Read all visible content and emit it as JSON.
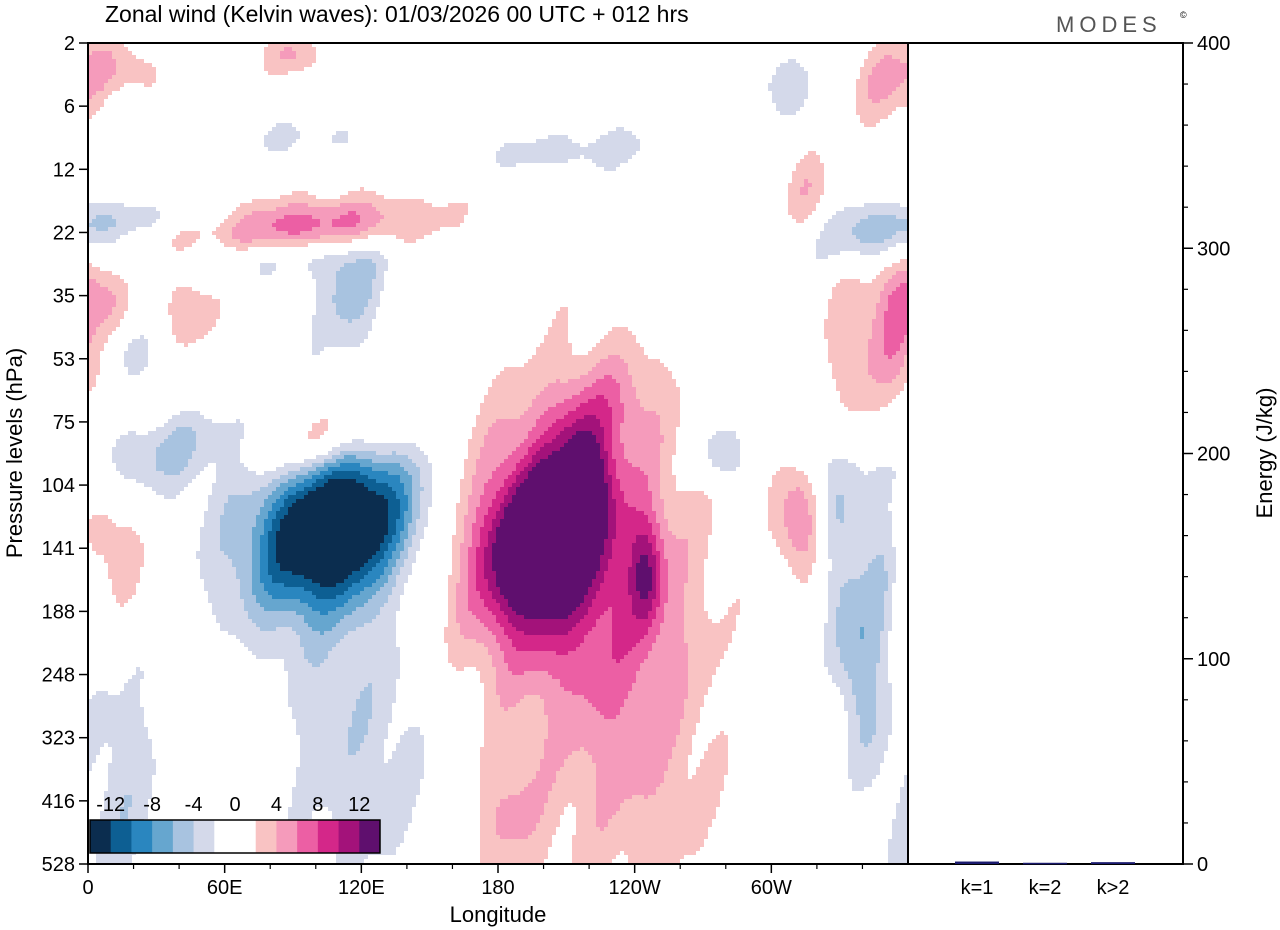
{
  "chart_data": [
    {
      "type": "heatmap",
      "title": "Zonal wind (Kelvin waves):  01/03/2026  00 UTC  + 012 hrs",
      "xlabel": "Longitude",
      "ylabel": "Pressure levels (hPa)",
      "x_ticks": [
        "0",
        "60E",
        "120E",
        "180",
        "120W",
        "60W"
      ],
      "x_tick_degrees": [
        0,
        60,
        120,
        180,
        240,
        300
      ],
      "xlim": [
        0,
        360
      ],
      "y_ticks": [
        "2",
        "6",
        "12",
        "22",
        "35",
        "53",
        "75",
        "104",
        "141",
        "188",
        "248",
        "323",
        "416",
        "528"
      ],
      "colorbar": {
        "labels": [
          "-12",
          "-8",
          "-4",
          "0",
          "4",
          "8",
          "12"
        ],
        "colors": [
          "#0b2d4f",
          "#0d5f93",
          "#2a86bf",
          "#66a6cf",
          "#a8c3e0",
          "#d4d9ea",
          "#ffffff",
          "#ffffff",
          "#f9c3c3",
          "#f59bbb",
          "#ec5fa4",
          "#d42789",
          "#a3127a",
          "#5f0f6e"
        ]
      },
      "anomalies": [
        {
          "lon": 110,
          "level": 7.7,
          "amp": -15,
          "slon": 22,
          "slev": 0.85,
          "tilt": -9
        },
        {
          "lon": 92,
          "level": 7.25,
          "amp": -4,
          "slon": 30,
          "slev": 1.3,
          "tilt": -7
        },
        {
          "lon": 58,
          "level": 6.4,
          "amp": -7,
          "slon": 34,
          "slev": 0.5,
          "tilt": -36
        },
        {
          "lon": 115,
          "level": 3.9,
          "amp": -5,
          "slon": 10,
          "slev": 0.6,
          "tilt": -3
        },
        {
          "lon": 80,
          "level": 3.4,
          "amp": -3,
          "slon": 32,
          "slev": 0.25,
          "tilt": -30
        },
        {
          "lon": 120,
          "level": 10.8,
          "amp": -3.5,
          "slon": 26,
          "slev": 2.0,
          "tilt": 0
        },
        {
          "lon": 15,
          "level": 11.8,
          "amp": -3.2,
          "slon": 14,
          "slev": 1.6,
          "tilt": 0
        },
        {
          "lon": 332,
          "level": 8.7,
          "amp": -6,
          "slon": 8,
          "slev": 2.0,
          "tilt": 4
        },
        {
          "lon": 347,
          "level": 8.4,
          "amp": -3.5,
          "slon": 6,
          "slev": 1.2,
          "tilt": 0
        },
        {
          "lon": 348,
          "level": 3.0,
          "amp": -6.5,
          "slon": 18,
          "slev": 0.35,
          "tilt": -12
        },
        {
          "lon": 218,
          "level": 1.7,
          "amp": -3,
          "slon": 38,
          "slev": 0.25,
          "tilt": -40
        },
        {
          "lon": 307,
          "level": 0.7,
          "amp": -3.5,
          "slon": 10,
          "slev": 0.4,
          "tilt": -6
        },
        {
          "lon": 278,
          "level": 6.5,
          "amp": -4.5,
          "slon": 9,
          "slev": 0.35,
          "tilt": 0
        },
        {
          "lon": 85,
          "level": 1.5,
          "amp": -2.5,
          "slon": 28,
          "slev": 0.2,
          "tilt": -30
        },
        {
          "lon": 30,
          "level": 2.8,
          "amp": -2.2,
          "slon": 24,
          "slev": 0.2,
          "tilt": 0
        },
        {
          "lon": 20,
          "level": 4.9,
          "amp": -2.2,
          "slon": 10,
          "slev": 0.3,
          "tilt": 0
        },
        {
          "lon": 198,
          "level": 7.9,
          "amp": 14,
          "slon": 17,
          "slev": 0.9,
          "tilt": -4
        },
        {
          "lon": 205,
          "level": 8.0,
          "amp": 7,
          "slon": 33,
          "slev": 1.9,
          "tilt": -2
        },
        {
          "lon": 218,
          "level": 7.0,
          "amp": 7,
          "slon": 7,
          "slev": 0.6,
          "tilt": 0
        },
        {
          "lon": 240,
          "level": 10.5,
          "amp": 4.5,
          "slon": 26,
          "slev": 2.4,
          "tilt": 0
        },
        {
          "lon": 185,
          "level": 12.3,
          "amp": 3.8,
          "slon": 12,
          "slev": 0.7,
          "tilt": 0
        },
        {
          "lon": 245,
          "level": 8.4,
          "amp": 6.5,
          "slon": 5,
          "slev": 0.6,
          "tilt": 0
        },
        {
          "lon": 92,
          "level": 6.3,
          "amp": 10.5,
          "slon": 28,
          "slev": 0.45,
          "tilt": -28
        },
        {
          "lon": 98,
          "level": 2.9,
          "amp": 7.5,
          "slon": 36,
          "slev": 0.32,
          "tilt": -34
        },
        {
          "lon": 70,
          "level": 5.5,
          "amp": 3,
          "slon": 18,
          "slev": 0.25,
          "tilt": -20
        },
        {
          "lon": 315,
          "level": 7.6,
          "amp": 6,
          "slon": 10,
          "slev": 0.8,
          "tilt": 6
        },
        {
          "lon": 335,
          "level": 4.9,
          "amp": 4,
          "slon": 10,
          "slev": 0.9,
          "tilt": 0
        },
        {
          "lon": 355,
          "level": 4.3,
          "amp": 6,
          "slon": 8,
          "slev": 0.9,
          "tilt": 0
        },
        {
          "lon": 12,
          "level": 8.0,
          "amp": 3.8,
          "slon": 10,
          "slev": 0.8,
          "tilt": 0
        },
        {
          "lon": 8,
          "level": 4.0,
          "amp": 3.3,
          "slon": 7,
          "slev": 0.4,
          "tilt": 0
        },
        {
          "lon": 45,
          "level": 4.2,
          "amp": 3.2,
          "slon": 10,
          "slev": 0.6,
          "tilt": 0
        },
        {
          "lon": 225,
          "level": 5.8,
          "amp": 3.5,
          "slon": 16,
          "slev": 0.6,
          "tilt": -10
        },
        {
          "lon": 350,
          "level": 0.7,
          "amp": 3.6,
          "slon": 12,
          "slev": 0.5,
          "tilt": 0
        },
        {
          "lon": 12,
          "level": 0.4,
          "amp": 3.6,
          "slon": 14,
          "slev": 0.35,
          "tilt": 0
        },
        {
          "lon": 90,
          "level": 0.2,
          "amp": 4.5,
          "slon": 8,
          "slev": 0.25,
          "tilt": 0
        },
        {
          "lon": 315,
          "level": 2.3,
          "amp": 3.3,
          "slon": 8,
          "slev": 0.5,
          "tilt": 0
        },
        {
          "lon": 60,
          "level": 1.5,
          "amp": 2.5,
          "slon": 10,
          "slev": 0.3,
          "tilt": 0
        }
      ]
    },
    {
      "type": "bar",
      "categories": [
        "k=1",
        "k=2",
        "k>2"
      ],
      "values": [
        1.2,
        0.6,
        0.9
      ],
      "ylabel": "Energy (J/kg)",
      "ylim": [
        0,
        400
      ],
      "y_ticks": [
        "0",
        "100",
        "200",
        "300",
        "400"
      ],
      "y_tick_values": [
        0,
        100,
        200,
        300,
        400
      ],
      "bar_color": "#1a1a6e"
    }
  ],
  "logo": "MODES",
  "logo_mark": "©"
}
